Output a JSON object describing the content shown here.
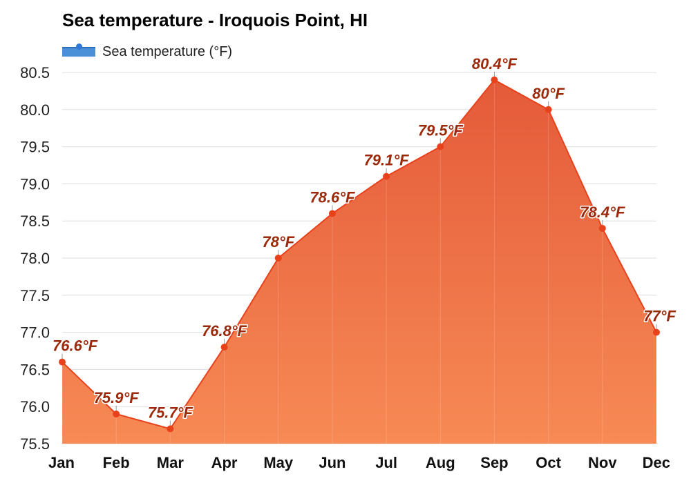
{
  "title": "Sea temperature - Iroquois Point, HI",
  "legend": {
    "label": "Sea temperature (°F)"
  },
  "colors": {
    "area_top": "#e45a39",
    "area_bottom": "#f78a55",
    "line": "#e8421c",
    "point": "#e8421c",
    "label": "#9b2a0b",
    "legend_swatch": "#4a90d9",
    "grid": "#dddddd"
  },
  "chart_data": {
    "type": "area",
    "title": "Sea temperature - Iroquois Point, HI",
    "categories": [
      "Jan",
      "Feb",
      "Mar",
      "Apr",
      "May",
      "Jun",
      "Jul",
      "Aug",
      "Sep",
      "Oct",
      "Nov",
      "Dec"
    ],
    "series": [
      {
        "name": "Sea temperature (°F)",
        "values": [
          76.6,
          75.9,
          75.7,
          76.8,
          78.0,
          78.6,
          79.1,
          79.5,
          80.4,
          80.0,
          78.4,
          77.0
        ],
        "labels": [
          "76.6°F",
          "75.9°F",
          "75.7°F",
          "76.8°F",
          "78°F",
          "78.6°F",
          "79.1°F",
          "79.5°F",
          "80.4°F",
          "80°F",
          "78.4°F",
          "77°F"
        ]
      }
    ],
    "y_ticks": [
      "75.5",
      "76.0",
      "76.5",
      "77.0",
      "77.5",
      "78.0",
      "78.5",
      "79.0",
      "79.5",
      "80.0",
      "80.5"
    ],
    "ylim": [
      75.5,
      80.5
    ],
    "grid": true,
    "legend_position": "top-left"
  }
}
